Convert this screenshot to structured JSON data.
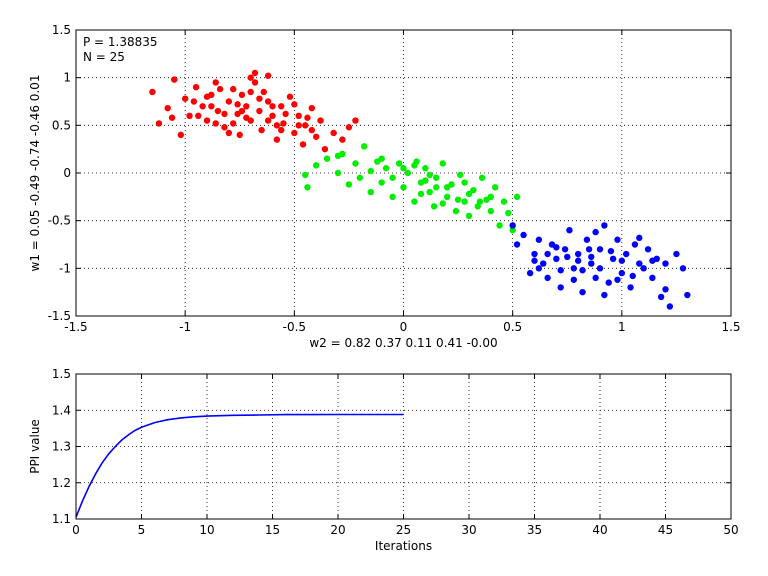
{
  "chart_data": [
    {
      "type": "scatter",
      "annotations": [
        "P = 1.38835",
        "N = 25"
      ],
      "xlabel": "w2 = 0.82  0.37  0.11  0.41  -0.00",
      "ylabel": "w1 = 0.05  -0.49  -0.74  -0.46  0.01",
      "xlim": [
        -1.5,
        1.5
      ],
      "ylim": [
        -1.5,
        1.5
      ],
      "xticks": [
        -1.5,
        -1,
        -0.5,
        0,
        0.5,
        1,
        1.5
      ],
      "yticks": [
        -1.5,
        -1,
        -0.5,
        0,
        0.5,
        1,
        1.5
      ],
      "xtick_labels": [
        "-1.5",
        "-1",
        "-0.5",
        "0",
        "0.5",
        "1",
        "1.5"
      ],
      "ytick_labels": [
        "-1.5",
        "-1",
        "-0.5",
        "0",
        "0.5",
        "1",
        "1.5"
      ],
      "grid": true,
      "series": [
        {
          "color": "#ff0000",
          "points": [
            [
              -1.15,
              0.85
            ],
            [
              -1.12,
              0.52
            ],
            [
              -1.08,
              0.68
            ],
            [
              -1.05,
              0.98
            ],
            [
              -1.02,
              0.4
            ],
            [
              -1.0,
              0.78
            ],
            [
              -0.98,
              0.6
            ],
            [
              -0.95,
              0.9
            ],
            [
              -0.92,
              0.7
            ],
            [
              -0.9,
              0.55
            ],
            [
              -0.88,
              0.82
            ],
            [
              -0.86,
              0.95
            ],
            [
              -0.85,
              0.65
            ],
            [
              -0.82,
              0.48
            ],
            [
              -0.8,
              0.75
            ],
            [
              -0.78,
              0.88
            ],
            [
              -0.76,
              0.62
            ],
            [
              -0.75,
              0.4
            ],
            [
              -0.72,
              0.7
            ],
            [
              -0.7,
              0.85
            ],
            [
              -0.7,
              0.55
            ],
            [
              -0.68,
              0.95
            ],
            [
              -0.66,
              0.65
            ],
            [
              -0.65,
              0.45
            ],
            [
              -0.62,
              0.75
            ],
            [
              -0.6,
              0.6
            ],
            [
              -0.58,
              0.35
            ],
            [
              -0.56,
              0.7
            ],
            [
              -0.55,
              0.52
            ],
            [
              -0.52,
              0.8
            ],
            [
              -0.5,
              0.42
            ],
            [
              -0.48,
              0.6
            ],
            [
              -0.46,
              0.3
            ],
            [
              -0.45,
              0.5
            ],
            [
              -0.42,
              0.68
            ],
            [
              -0.4,
              0.38
            ],
            [
              -0.38,
              0.55
            ],
            [
              -0.36,
              0.25
            ],
            [
              -0.32,
              0.42
            ],
            [
              -0.28,
              0.35
            ],
            [
              -0.25,
              0.48
            ],
            [
              -0.22,
              0.55
            ],
            [
              -0.88,
              0.7
            ],
            [
              -0.82,
              0.62
            ],
            [
              -0.76,
              0.72
            ],
            [
              -0.72,
              0.58
            ],
            [
              -0.66,
              0.78
            ],
            [
              -0.6,
              0.7
            ],
            [
              -0.94,
              0.6
            ],
            [
              -0.84,
              0.88
            ],
            [
              -0.78,
              0.52
            ],
            [
              -0.7,
              1.0
            ],
            [
              -0.64,
              0.85
            ],
            [
              -0.58,
              0.5
            ],
            [
              -0.54,
              0.62
            ],
            [
              -0.5,
              0.72
            ],
            [
              -0.44,
              0.58
            ],
            [
              -0.68,
              1.05
            ],
            [
              -0.62,
              0.55
            ],
            [
              -0.56,
              0.45
            ],
            [
              -0.96,
              0.75
            ],
            [
              -1.06,
              0.58
            ],
            [
              -0.74,
              0.82
            ],
            [
              -0.8,
              0.42
            ],
            [
              -0.42,
              0.45
            ],
            [
              -0.62,
              1.02
            ],
            [
              -0.48,
              0.5
            ],
            [
              -0.86,
              0.52
            ],
            [
              -0.9,
              0.8
            ],
            [
              -0.74,
              0.65
            ]
          ]
        },
        {
          "color": "#00ee00",
          "points": [
            [
              -0.45,
              -0.02
            ],
            [
              -0.44,
              -0.15
            ],
            [
              -0.4,
              0.08
            ],
            [
              -0.35,
              0.15
            ],
            [
              -0.3,
              0.0
            ],
            [
              -0.28,
              0.2
            ],
            [
              -0.25,
              -0.12
            ],
            [
              -0.22,
              0.1
            ],
            [
              -0.2,
              -0.05
            ],
            [
              -0.18,
              0.28
            ],
            [
              -0.15,
              -0.2
            ],
            [
              -0.12,
              0.12
            ],
            [
              -0.1,
              -0.1
            ],
            [
              -0.08,
              0.05
            ],
            [
              -0.05,
              -0.25
            ],
            [
              -0.02,
              0.1
            ],
            [
              0.0,
              -0.15
            ],
            [
              0.02,
              0.0
            ],
            [
              0.05,
              -0.3
            ],
            [
              0.06,
              0.12
            ],
            [
              0.08,
              -0.1
            ],
            [
              0.1,
              0.05
            ],
            [
              0.12,
              -0.2
            ],
            [
              0.14,
              -0.35
            ],
            [
              0.15,
              -0.05
            ],
            [
              0.18,
              0.1
            ],
            [
              0.2,
              -0.25
            ],
            [
              0.22,
              -0.12
            ],
            [
              0.24,
              -0.4
            ],
            [
              0.26,
              -0.02
            ],
            [
              0.28,
              -0.3
            ],
            [
              0.3,
              -0.45
            ],
            [
              0.32,
              -0.18
            ],
            [
              0.34,
              -0.35
            ],
            [
              0.36,
              -0.05
            ],
            [
              0.38,
              -0.28
            ],
            [
              0.4,
              -0.4
            ],
            [
              0.42,
              -0.15
            ],
            [
              0.44,
              -0.55
            ],
            [
              0.46,
              -0.3
            ],
            [
              0.48,
              -0.42
            ],
            [
              0.5,
              -0.6
            ],
            [
              0.52,
              -0.25
            ],
            [
              -0.1,
              0.15
            ],
            [
              0.0,
              0.05
            ],
            [
              0.1,
              -0.08
            ],
            [
              0.2,
              -0.15
            ],
            [
              0.3,
              -0.22
            ],
            [
              -0.05,
              -0.05
            ],
            [
              0.05,
              0.08
            ],
            [
              0.15,
              -0.15
            ],
            [
              0.25,
              -0.28
            ],
            [
              0.35,
              -0.3
            ],
            [
              -0.15,
              0.02
            ],
            [
              -0.3,
              0.18
            ],
            [
              0.08,
              -0.22
            ],
            [
              0.18,
              -0.32
            ],
            [
              0.28,
              -0.1
            ],
            [
              0.4,
              -0.25
            ],
            [
              0.12,
              -0.02
            ]
          ]
        },
        {
          "color": "#0000ff",
          "points": [
            [
              0.5,
              -0.55
            ],
            [
              0.52,
              -0.75
            ],
            [
              0.55,
              -0.65
            ],
            [
              0.58,
              -1.05
            ],
            [
              0.6,
              -0.85
            ],
            [
              0.62,
              -0.7
            ],
            [
              0.64,
              -0.95
            ],
            [
              0.66,
              -1.1
            ],
            [
              0.68,
              -0.75
            ],
            [
              0.7,
              -0.9
            ],
            [
              0.72,
              -1.2
            ],
            [
              0.74,
              -0.8
            ],
            [
              0.76,
              -0.6
            ],
            [
              0.78,
              -1.0
            ],
            [
              0.8,
              -0.85
            ],
            [
              0.82,
              -1.25
            ],
            [
              0.84,
              -0.7
            ],
            [
              0.86,
              -0.95
            ],
            [
              0.88,
              -1.1
            ],
            [
              0.9,
              -0.8
            ],
            [
              0.92,
              -0.55
            ],
            [
              0.94,
              -1.15
            ],
            [
              0.96,
              -0.9
            ],
            [
              0.98,
              -0.7
            ],
            [
              1.0,
              -1.05
            ],
            [
              1.02,
              -0.85
            ],
            [
              1.04,
              -1.2
            ],
            [
              1.06,
              -0.75
            ],
            [
              1.08,
              -0.95
            ],
            [
              1.1,
              -1.0
            ],
            [
              1.12,
              -0.8
            ],
            [
              1.14,
              -1.1
            ],
            [
              1.16,
              -0.9
            ],
            [
              1.18,
              -1.3
            ],
            [
              1.2,
              -0.95
            ],
            [
              1.22,
              -1.4
            ],
            [
              1.25,
              -0.85
            ],
            [
              1.28,
              -1.0
            ],
            [
              1.3,
              -1.28
            ],
            [
              1.2,
              -1.22
            ],
            [
              0.7,
              -0.78
            ],
            [
              0.8,
              -0.92
            ],
            [
              0.9,
              -1.0
            ],
            [
              1.0,
              -0.92
            ],
            [
              0.75,
              -0.88
            ],
            [
              0.85,
              -0.8
            ],
            [
              0.95,
              -0.82
            ],
            [
              0.6,
              -0.92
            ],
            [
              0.66,
              -0.85
            ],
            [
              1.05,
              -1.08
            ],
            [
              0.78,
              -1.12
            ],
            [
              0.88,
              -0.62
            ],
            [
              0.92,
              -1.28
            ],
            [
              1.08,
              -0.68
            ],
            [
              0.72,
              -1.02
            ],
            [
              0.82,
              -1.02
            ],
            [
              0.98,
              -1.12
            ],
            [
              0.62,
              -1.0
            ],
            [
              1.14,
              -0.92
            ],
            [
              0.86,
              -0.88
            ]
          ]
        }
      ]
    },
    {
      "type": "line",
      "xlabel": "Iterations",
      "ylabel": "PPI value",
      "xlim": [
        0,
        50
      ],
      "ylim": [
        1.1,
        1.5
      ],
      "xticks": [
        0,
        5,
        10,
        15,
        20,
        25,
        30,
        35,
        40,
        45,
        50
      ],
      "yticks": [
        1.1,
        1.2,
        1.3,
        1.4,
        1.5
      ],
      "xtick_labels": [
        "0",
        "5",
        "10",
        "15",
        "20",
        "25",
        "30",
        "35",
        "40",
        "45",
        "50"
      ],
      "ytick_labels": [
        "1.1",
        "1.2",
        "1.3",
        "1.4",
        "1.5"
      ],
      "grid": true,
      "series": [
        {
          "color": "#0000ff",
          "x": [
            0,
            0.5,
            1,
            1.5,
            2,
            2.5,
            3,
            3.5,
            4,
            4.5,
            5,
            6,
            7,
            8,
            9,
            10,
            12,
            14,
            16,
            18,
            20,
            22,
            25
          ],
          "y": [
            1.105,
            1.15,
            1.19,
            1.225,
            1.255,
            1.28,
            1.3,
            1.318,
            1.332,
            1.344,
            1.353,
            1.366,
            1.374,
            1.379,
            1.382,
            1.384,
            1.386,
            1.387,
            1.388,
            1.388,
            1.3883,
            1.3883,
            1.38835
          ]
        }
      ]
    }
  ]
}
